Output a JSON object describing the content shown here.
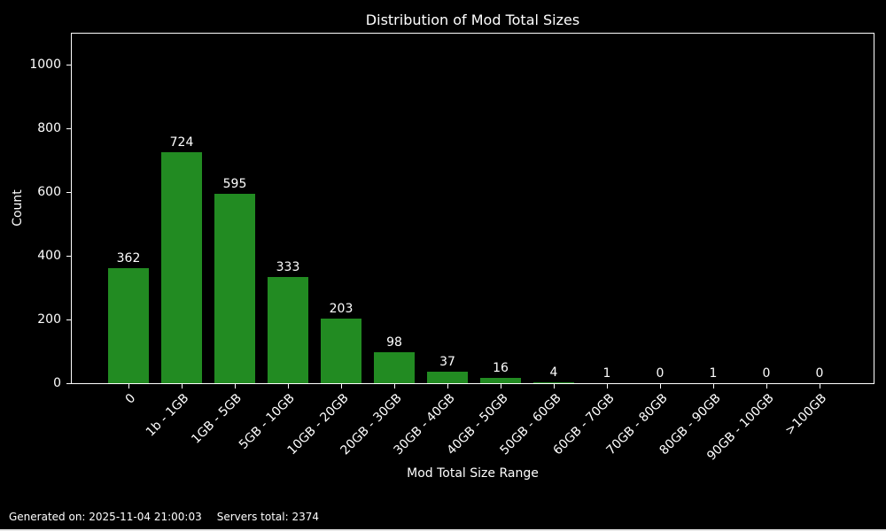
{
  "footer": {
    "generated": "Generated on: 2025-11-04 21:00:03",
    "servers_total": "Servers total: 2374"
  },
  "chart_data": {
    "type": "bar",
    "title": "Distribution of Mod Total Sizes",
    "xlabel": "Mod Total Size Range",
    "ylabel": "Count",
    "categories": [
      "0",
      "1b - 1GB",
      "1GB - 5GB",
      "5GB - 10GB",
      "10GB - 20GB",
      "20GB - 30GB",
      "30GB - 40GB",
      "40GB - 50GB",
      "50GB - 60GB",
      "60GB - 70GB",
      "70GB - 80GB",
      "80GB - 90GB",
      "90GB - 100GB",
      ">100GB"
    ],
    "values": [
      362,
      724,
      595,
      333,
      203,
      98,
      37,
      16,
      4,
      1,
      0,
      1,
      0,
      0
    ],
    "yticks": [
      0,
      200,
      400,
      600,
      800,
      1000
    ],
    "ylim": [
      0,
      1100
    ],
    "bar_color": "#228B22",
    "background_color": "#000000",
    "text_color": "#ffffff",
    "grid": false,
    "legend": "none",
    "bar_value_labels_shown": true,
    "xtick_rotation_deg": 45
  }
}
